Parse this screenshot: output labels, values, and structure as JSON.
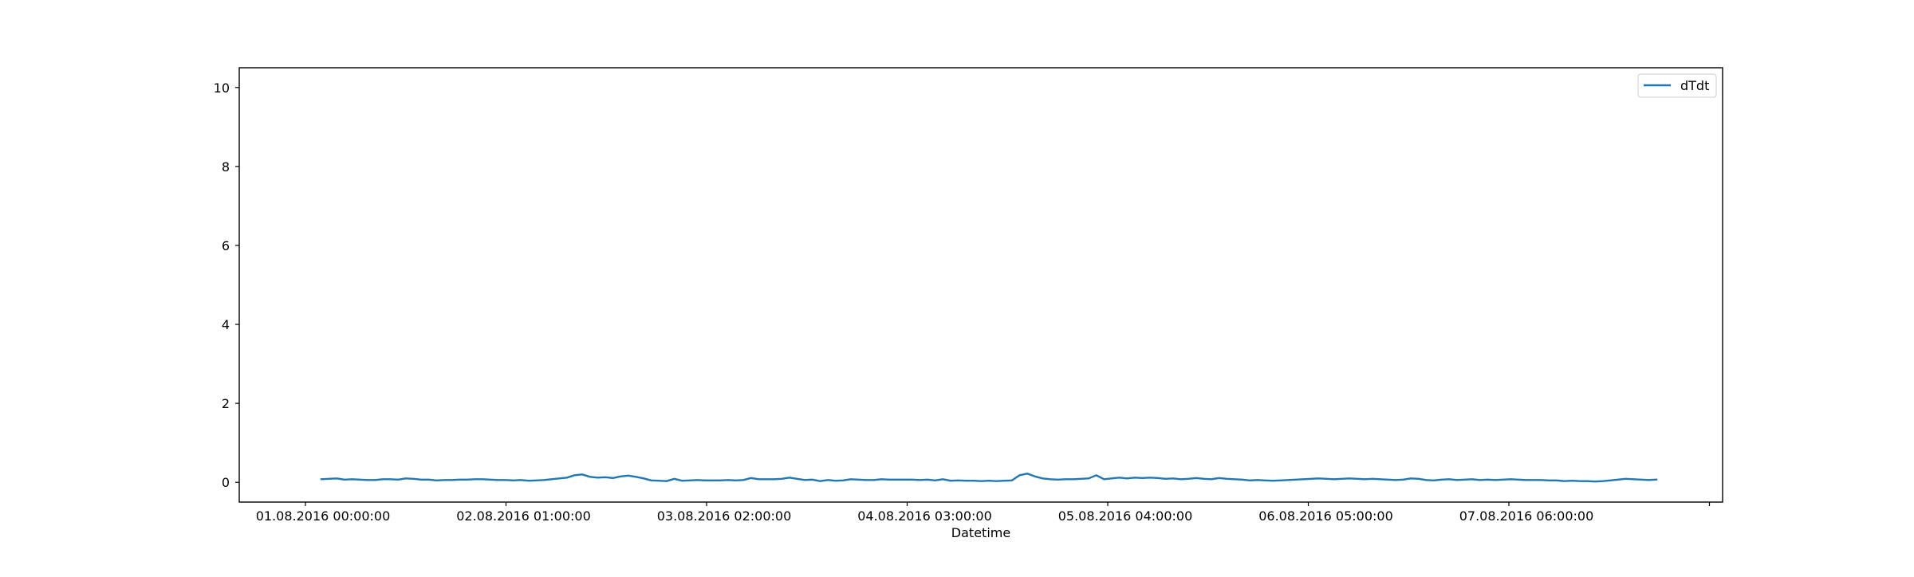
{
  "chart_data": {
    "type": "line",
    "title": "",
    "xlabel": "Datetime",
    "ylabel": "",
    "ylim": [
      -0.5,
      10.5
    ],
    "yticks": [
      0,
      2,
      4,
      6,
      8,
      10
    ],
    "xticks": [
      "01.08.2016 00:00:00",
      "02.08.2016 01:00:00",
      "03.08.2016 02:00:00",
      "04.08.2016 03:00:00",
      "05.08.2016 04:00:00",
      "06.08.2016 05:00:00",
      "07.08.2016 06:00:00"
    ],
    "grid": false,
    "legend_position": "top-right",
    "series": [
      {
        "name": "dTdt",
        "color": "#1f77b4",
        "values": [
          0.08,
          0.09,
          0.1,
          0.07,
          0.08,
          0.07,
          0.06,
          0.06,
          0.08,
          0.08,
          0.07,
          0.1,
          0.09,
          0.07,
          0.07,
          0.05,
          0.06,
          0.06,
          0.07,
          0.07,
          0.08,
          0.08,
          0.07,
          0.06,
          0.06,
          0.05,
          0.06,
          0.04,
          0.05,
          0.06,
          0.08,
          0.1,
          0.12,
          0.18,
          0.2,
          0.14,
          0.12,
          0.13,
          0.11,
          0.15,
          0.17,
          0.14,
          0.1,
          0.05,
          0.04,
          0.03,
          0.09,
          0.04,
          0.05,
          0.06,
          0.05,
          0.05,
          0.05,
          0.06,
          0.05,
          0.06,
          0.11,
          0.08,
          0.08,
          0.08,
          0.09,
          0.12,
          0.09,
          0.06,
          0.07,
          0.03,
          0.06,
          0.04,
          0.05,
          0.08,
          0.07,
          0.06,
          0.06,
          0.08,
          0.07,
          0.07,
          0.07,
          0.07,
          0.06,
          0.07,
          0.05,
          0.08,
          0.04,
          0.05,
          0.04,
          0.04,
          0.03,
          0.04,
          0.03,
          0.04,
          0.05,
          0.18,
          0.22,
          0.15,
          0.1,
          0.08,
          0.07,
          0.08,
          0.08,
          0.09,
          0.1,
          0.18,
          0.08,
          0.1,
          0.12,
          0.1,
          0.12,
          0.11,
          0.12,
          0.11,
          0.09,
          0.1,
          0.08,
          0.09,
          0.11,
          0.09,
          0.08,
          0.11,
          0.09,
          0.08,
          0.07,
          0.05,
          0.06,
          0.05,
          0.04,
          0.05,
          0.06,
          0.07,
          0.08,
          0.09,
          0.1,
          0.09,
          0.08,
          0.09,
          0.1,
          0.09,
          0.08,
          0.09,
          0.08,
          0.07,
          0.06,
          0.07,
          0.1,
          0.09,
          0.06,
          0.05,
          0.07,
          0.08,
          0.06,
          0.07,
          0.08,
          0.06,
          0.07,
          0.06,
          0.07,
          0.08,
          0.07,
          0.06,
          0.06,
          0.06,
          0.05,
          0.05,
          0.03,
          0.04,
          0.03,
          0.03,
          0.02,
          0.03,
          0.05,
          0.07,
          0.09,
          0.08,
          0.07,
          0.06,
          0.07
        ]
      }
    ]
  }
}
